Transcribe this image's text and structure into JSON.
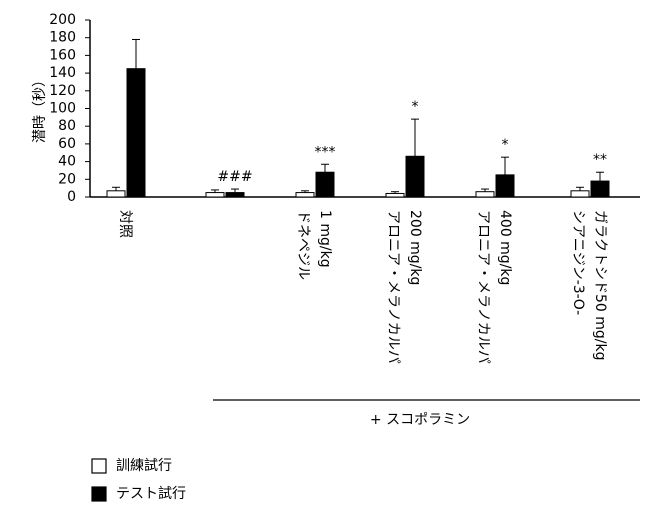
{
  "chart_data": {
    "type": "bar",
    "y_label": "潜時（秒）",
    "categories": [
      "対照",
      null,
      "ドネペジル\n1 mg/kg",
      "アロニア・メラノカルパ\n200 mg/kg",
      "アロニア・メラノカルパ\n400 mg/kg",
      "シアニジン-3-O-\nガラクトシド50 mg/kg"
    ],
    "series": [
      {
        "name": "訓練試行",
        "color": "#ffffff",
        "values": [
          7,
          5,
          5,
          4,
          6,
          7
        ],
        "errors": [
          4,
          3,
          2,
          2,
          3,
          4
        ]
      },
      {
        "name": "テスト試行",
        "color": "#000000",
        "values": [
          145,
          5,
          28,
          46,
          25,
          18
        ],
        "errors": [
          33,
          4,
          9,
          42,
          20,
          10
        ]
      }
    ],
    "annotations": [
      null,
      "###",
      "***",
      "*",
      "*",
      "**"
    ],
    "group_label": "+ スコポラミン",
    "ylim": [
      0,
      200
    ],
    "yticks": [
      0,
      20,
      40,
      60,
      80,
      100,
      120,
      140,
      160,
      180,
      200
    ],
    "legend": "bottom-left"
  }
}
